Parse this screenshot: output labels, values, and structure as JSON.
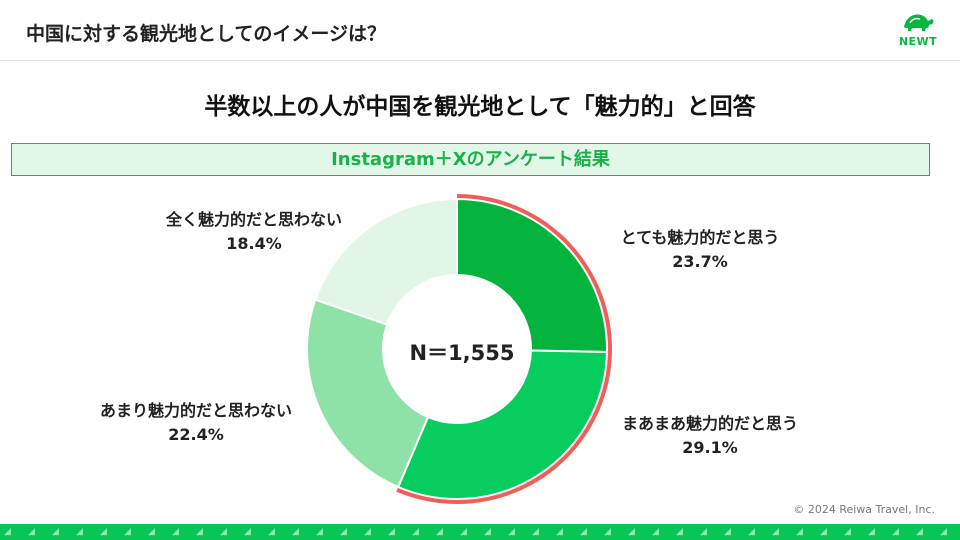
{
  "header": {
    "title": "中国に対する観光地としてのイメージは？",
    "logo_text": "NEWT",
    "logo_icon": "turtle-icon"
  },
  "headline": "半数以上の人が中国を観光地として「魅力的」と回答",
  "banner": "Instagram＋Xのアンケート結果",
  "chart_data": {
    "type": "pie",
    "style": "donut",
    "center_label": "N＝1,555",
    "slices": [
      {
        "label": "とても魅力的だと思う",
        "value_label": "23.7%",
        "value": 23.7,
        "color": "#05b43e",
        "highlighted": true
      },
      {
        "label": "まあまあ魅力的だと思う",
        "value_label": "29.1%",
        "value": 29.1,
        "color": "#06cd5d",
        "highlighted": true
      },
      {
        "label": "あまり魅力的だと思わない",
        "value_label": "22.4%",
        "value": 22.4,
        "color": "#8fe2a7",
        "highlighted": false
      },
      {
        "label": "全く魅力的だと思わない",
        "value_label": "18.4%",
        "value": 18.4,
        "color": "#e1f6e7",
        "highlighted": false
      }
    ],
    "highlight_color": "#ee5f5b"
  },
  "footer": {
    "copyright": "© 2024 Reiwa Travel, Inc."
  }
}
